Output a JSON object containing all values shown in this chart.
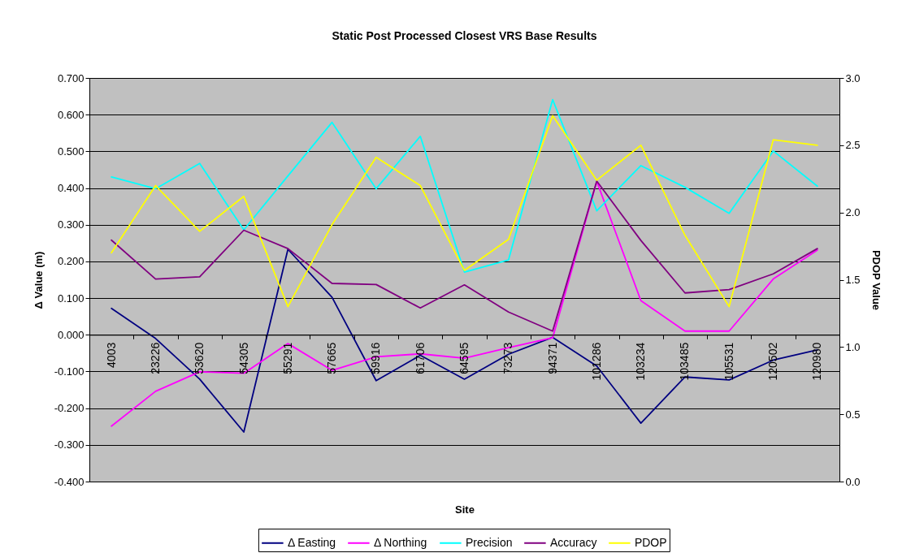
{
  "chart_data": {
    "type": "line",
    "title": "Static Post Processed Closest VRS Base Results",
    "xlabel": "Site",
    "ylabel": "Δ Value (m)",
    "y2label": "PDOP Value",
    "categories": [
      "4003",
      "23226",
      "53620",
      "54305",
      "55291",
      "57665",
      "59916",
      "61706",
      "64595",
      "73273",
      "94371",
      "101286",
      "103234",
      "103485",
      "105531",
      "120502",
      "120980"
    ],
    "series": [
      {
        "name": "Δ Easting",
        "color": "#000080",
        "values": [
          0.072,
          -0.01,
          -0.121,
          -0.265,
          0.233,
          0.102,
          -0.125,
          -0.056,
          -0.121,
          -0.053,
          -0.007,
          -0.085,
          -0.241,
          -0.115,
          -0.123,
          -0.069,
          -0.041
        ]
      },
      {
        "name": "Δ Northing",
        "color": "#ff00ff",
        "values": [
          -0.249,
          -0.154,
          -0.101,
          -0.105,
          -0.024,
          -0.097,
          -0.06,
          -0.052,
          -0.064,
          -0.035,
          -0.008,
          0.418,
          0.093,
          0.01,
          0.01,
          0.152,
          0.231
        ]
      },
      {
        "name": "Precision",
        "color": "#00ffff",
        "values": [
          0.43,
          0.398,
          0.467,
          0.286,
          0.433,
          0.579,
          0.398,
          0.541,
          0.171,
          0.204,
          0.641,
          0.338,
          0.461,
          0.402,
          0.331,
          0.501,
          0.405
        ]
      },
      {
        "name": "Accuracy",
        "color": "#800080",
        "values": [
          0.258,
          0.152,
          0.158,
          0.285,
          0.235,
          0.14,
          0.137,
          0.073,
          0.136,
          0.062,
          0.01,
          0.419,
          0.257,
          0.114,
          0.123,
          0.166,
          0.235
        ]
      },
      {
        "name": "PDOP",
        "color": "#ffff00",
        "axis": "y2",
        "values": [
          1.7,
          2.2,
          1.86,
          2.12,
          1.3,
          1.91,
          2.41,
          2.2,
          1.57,
          1.8,
          2.72,
          2.24,
          2.5,
          1.83,
          1.3,
          2.54,
          2.5
        ]
      }
    ],
    "ylim": [
      -0.4,
      0.7
    ],
    "yticks": [
      {
        "value": -0.4,
        "label": "-0.400"
      },
      {
        "value": -0.3,
        "label": "-0.300"
      },
      {
        "value": -0.2,
        "label": "-0.200"
      },
      {
        "value": -0.1,
        "label": "-0.100"
      },
      {
        "value": 0,
        "label": "0.000"
      },
      {
        "value": 0.1,
        "label": "0.100"
      },
      {
        "value": 0.2,
        "label": "0.200"
      },
      {
        "value": 0.3,
        "label": "0.300"
      },
      {
        "value": 0.4,
        "label": "0.400"
      },
      {
        "value": 0.5,
        "label": "0.500"
      },
      {
        "value": 0.6,
        "label": "0.600"
      },
      {
        "value": 0.7,
        "label": "0.700"
      }
    ],
    "y2lim": [
      0,
      3
    ],
    "y2ticks": [
      {
        "value": 0,
        "label": "0.0"
      },
      {
        "value": 0.5,
        "label": "0.5"
      },
      {
        "value": 1,
        "label": "1.0"
      },
      {
        "value": 1.5,
        "label": "1.5"
      },
      {
        "value": 2,
        "label": "2.0"
      },
      {
        "value": 2.5,
        "label": "2.5"
      },
      {
        "value": 3,
        "label": "3.0"
      }
    ],
    "grid": "y",
    "legend": "bottom"
  }
}
